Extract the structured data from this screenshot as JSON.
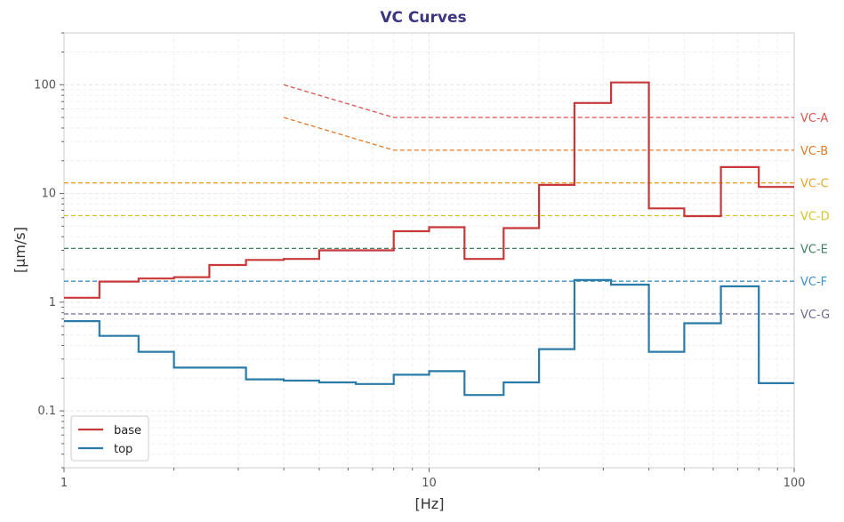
{
  "chart_data": {
    "type": "line",
    "title": "VC Curves",
    "xlabel": "[Hz]",
    "ylabel": "[µm/s]",
    "x_scale": "log",
    "y_scale": "log",
    "xlim": [
      1,
      100
    ],
    "ylim": [
      0.03,
      300
    ],
    "x_ticks": [
      {
        "value": 1,
        "label": "1"
      },
      {
        "value": 10,
        "label": "10"
      },
      {
        "value": 100,
        "label": "100"
      }
    ],
    "y_ticks": [
      {
        "value": 0.1,
        "label": "0.1"
      },
      {
        "value": 1,
        "label": "1"
      },
      {
        "value": 10,
        "label": "10"
      },
      {
        "value": 100,
        "label": "100"
      }
    ],
    "grid": true,
    "legend_position": "bottom-left",
    "series": [
      {
        "name": "base",
        "color": "#c8383a",
        "style": "step",
        "x": [
          1,
          1.25,
          1.6,
          2,
          2.5,
          3.15,
          4,
          5,
          6.3,
          8,
          10,
          12.5,
          16,
          20,
          25,
          31.5,
          40,
          50,
          63,
          80,
          100
        ],
        "y": [
          1.1,
          1.55,
          1.65,
          1.7,
          2.2,
          2.45,
          2.5,
          3.0,
          3.0,
          4.5,
          4.9,
          2.5,
          4.8,
          12,
          68,
          105,
          7.3,
          6.2,
          17.5,
          11.5,
          11.5
        ]
      },
      {
        "name": "top",
        "color": "#2a7ba8",
        "style": "step",
        "x": [
          1,
          1.25,
          1.6,
          2,
          2.5,
          3.15,
          4,
          5,
          6.3,
          8,
          10,
          12.5,
          16,
          20,
          25,
          31.5,
          40,
          50,
          63,
          80,
          100
        ],
        "y": [
          0.67,
          0.49,
          0.35,
          0.25,
          0.25,
          0.195,
          0.19,
          0.183,
          0.177,
          0.215,
          0.232,
          0.14,
          0.183,
          0.37,
          1.6,
          1.45,
          0.35,
          0.64,
          1.4,
          0.18,
          0.18
        ]
      }
    ],
    "vc_curves": [
      {
        "label": "VC-A",
        "color": "#d9534f",
        "x": [
          4,
          8,
          100
        ],
        "y": [
          100,
          50,
          50
        ]
      },
      {
        "label": "VC-B",
        "color": "#e07b29",
        "x": [
          4,
          8,
          100
        ],
        "y": [
          50,
          25,
          25
        ]
      },
      {
        "label": "VC-C",
        "color": "#e8a52a",
        "x": [
          1,
          100
        ],
        "y": [
          12.5,
          12.5
        ]
      },
      {
        "label": "VC-D",
        "color": "#d8c229",
        "x": [
          1,
          100
        ],
        "y": [
          6.25,
          6.25
        ]
      },
      {
        "label": "VC-E",
        "color": "#3f7f5e",
        "x": [
          1,
          100
        ],
        "y": [
          3.12,
          3.12
        ]
      },
      {
        "label": "VC-F",
        "color": "#3e8fc4",
        "x": [
          1,
          100
        ],
        "y": [
          1.56,
          1.56
        ]
      },
      {
        "label": "VC-G",
        "color": "#6d6a92",
        "x": [
          1,
          100
        ],
        "y": [
          0.78,
          0.78
        ]
      }
    ]
  }
}
